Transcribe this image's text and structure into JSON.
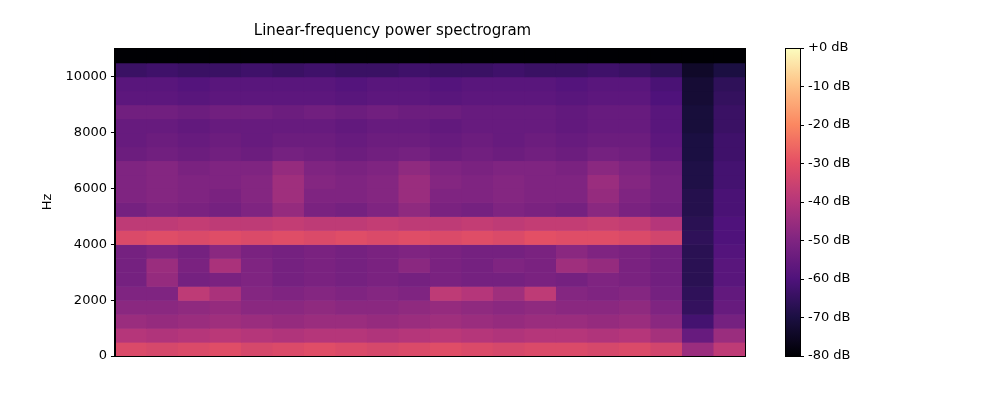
{
  "chart_data": {
    "type": "heatmap",
    "title": "Linear-frequency power spectrogram",
    "y_label": "Hz",
    "xlim": [
      0,
      20
    ],
    "ylim": [
      0,
      11025
    ],
    "yticks": [
      0,
      2000,
      4000,
      6000,
      8000,
      10000
    ],
    "grid": false,
    "tick_labels": "y",
    "color": "magma",
    "x_bins": [
      0,
      1,
      2,
      3,
      4,
      5,
      6,
      7,
      8,
      9,
      10,
      11,
      12,
      13,
      14,
      15,
      16,
      17,
      18,
      19,
      20
    ],
    "y_bins": [
      0,
      500,
      1000,
      1500,
      2000,
      2500,
      3000,
      3500,
      4000,
      4500,
      5000,
      5500,
      6000,
      6500,
      7000,
      7500,
      8000,
      8500,
      9000,
      9500,
      10000,
      10500,
      11025
    ],
    "cells": [
      [
        -32,
        -33,
        -32,
        -31,
        -33,
        -32,
        -31,
        -32,
        -33,
        -32,
        -31,
        -32,
        -33,
        -32,
        -32,
        -33,
        -32,
        -34,
        -45,
        -38
      ],
      [
        -40,
        -41,
        -40,
        -39,
        -40,
        -41,
        -40,
        -40,
        -41,
        -40,
        -39,
        -40,
        -41,
        -40,
        -40,
        -41,
        -40,
        -43,
        -55,
        -45
      ],
      [
        -45,
        -46,
        -45,
        -44,
        -45,
        -46,
        -45,
        -45,
        -46,
        -45,
        -44,
        -45,
        -46,
        -45,
        -45,
        -46,
        -45,
        -48,
        -62,
        -52
      ],
      [
        -48,
        -48,
        -47,
        -46,
        -48,
        -48,
        -47,
        -48,
        -48,
        -47,
        -46,
        -47,
        -48,
        -47,
        -48,
        -48,
        -47,
        -50,
        -65,
        -55
      ],
      [
        -50,
        -50,
        -38,
        -42,
        -49,
        -50,
        -49,
        -50,
        -49,
        -50,
        -38,
        -40,
        -44,
        -38,
        -49,
        -50,
        -49,
        -52,
        -66,
        -56
      ],
      [
        -52,
        -46,
        -52,
        -51,
        -50,
        -52,
        -51,
        -52,
        -51,
        -52,
        -51,
        -52,
        -52,
        -51,
        -52,
        -50,
        -51,
        -53,
        -67,
        -58
      ],
      [
        -52,
        -45,
        -51,
        -42,
        -50,
        -52,
        -51,
        -52,
        -51,
        -48,
        -51,
        -52,
        -50,
        -51,
        -44,
        -46,
        -51,
        -53,
        -67,
        -58
      ],
      [
        -52,
        -50,
        -52,
        -48,
        -51,
        -52,
        -51,
        -52,
        -51,
        -50,
        -51,
        -52,
        -52,
        -51,
        -48,
        -50,
        -51,
        -53,
        -67,
        -59
      ],
      [
        -32,
        -31,
        -32,
        -31,
        -32,
        -31,
        -32,
        -31,
        -32,
        -31,
        -32,
        -31,
        -32,
        -30,
        -31,
        -31,
        -32,
        -34,
        -66,
        -60
      ],
      [
        -38,
        -38,
        -37,
        -38,
        -38,
        -37,
        -38,
        -38,
        -37,
        -38,
        -38,
        -37,
        -38,
        -37,
        -37,
        -36,
        -37,
        -40,
        -67,
        -60
      ],
      [
        -52,
        -50,
        -51,
        -52,
        -50,
        -46,
        -51,
        -52,
        -50,
        -47,
        -51,
        -52,
        -50,
        -51,
        -52,
        -48,
        -51,
        -53,
        -68,
        -61
      ],
      [
        -50,
        -49,
        -50,
        -51,
        -49,
        -44,
        -50,
        -50,
        -49,
        -45,
        -50,
        -50,
        -49,
        -50,
        -50,
        -46,
        -50,
        -52,
        -68,
        -61
      ],
      [
        -50,
        -49,
        -50,
        -50,
        -49,
        -44,
        -49,
        -50,
        -49,
        -45,
        -49,
        -50,
        -49,
        -50,
        -50,
        -45,
        -49,
        -52,
        -69,
        -62
      ],
      [
        -50,
        -49,
        -51,
        -50,
        -50,
        -46,
        -50,
        -51,
        -50,
        -47,
        -50,
        -51,
        -50,
        -50,
        -51,
        -48,
        -50,
        -53,
        -69,
        -62
      ],
      [
        -54,
        -53,
        -54,
        -53,
        -54,
        -52,
        -53,
        -54,
        -53,
        -52,
        -54,
        -53,
        -54,
        -53,
        -54,
        -52,
        -53,
        -56,
        -70,
        -63
      ],
      [
        -55,
        -54,
        -55,
        -54,
        -55,
        -54,
        -54,
        -55,
        -54,
        -54,
        -55,
        -54,
        -55,
        -54,
        -55,
        -54,
        -54,
        -57,
        -70,
        -63
      ],
      [
        -55,
        -55,
        -56,
        -55,
        -55,
        -55,
        -55,
        -56,
        -55,
        -55,
        -56,
        -55,
        -55,
        -55,
        -56,
        -55,
        -55,
        -58,
        -71,
        -64
      ],
      [
        -53,
        -53,
        -54,
        -53,
        -53,
        -54,
        -53,
        -54,
        -53,
        -54,
        -54,
        -55,
        -55,
        -55,
        -56,
        -55,
        -55,
        -58,
        -71,
        -64
      ],
      [
        -57,
        -57,
        -58,
        -57,
        -57,
        -57,
        -57,
        -58,
        -57,
        -57,
        -58,
        -57,
        -57,
        -57,
        -58,
        -57,
        -57,
        -60,
        -72,
        -65
      ],
      [
        -58,
        -58,
        -59,
        -58,
        -58,
        -58,
        -58,
        -59,
        -58,
        -58,
        -59,
        -58,
        -58,
        -58,
        -59,
        -58,
        -58,
        -61,
        -72,
        -66
      ],
      [
        -64,
        -63,
        -64,
        -64,
        -63,
        -64,
        -63,
        -64,
        -64,
        -63,
        -64,
        -64,
        -63,
        -64,
        -64,
        -63,
        -64,
        -66,
        -74,
        -70
      ],
      [
        -80,
        -80,
        -80,
        -80,
        -80,
        -80,
        -80,
        -80,
        -80,
        -80,
        -80,
        -80,
        -80,
        -80,
        -80,
        -80,
        -80,
        -80,
        -80,
        -80
      ]
    ],
    "color_range": [
      -80,
      0
    ],
    "color_ticks": [
      {
        "value": 0,
        "label": "+0 dB"
      },
      {
        "value": -10,
        "label": "-10 dB"
      },
      {
        "value": -20,
        "label": "-20 dB"
      },
      {
        "value": -30,
        "label": "-30 dB"
      },
      {
        "value": -40,
        "label": "-40 dB"
      },
      {
        "value": -50,
        "label": "-50 dB"
      },
      {
        "value": -60,
        "label": "-60 dB"
      },
      {
        "value": -70,
        "label": "-70 dB"
      },
      {
        "value": -80,
        "label": "-80 dB"
      }
    ]
  }
}
